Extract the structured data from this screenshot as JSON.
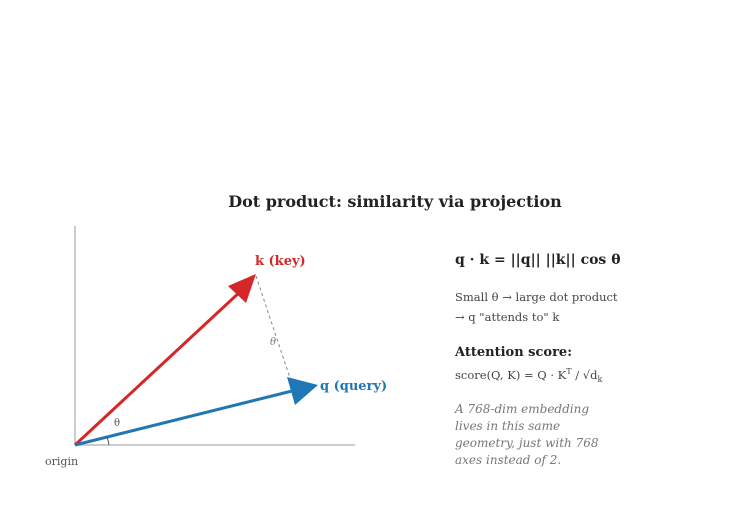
{
  "title": "Dot product: similarity via projection",
  "colors": {
    "key": "#d62728",
    "query": "#1f77b4",
    "axis": "#bbbbbb",
    "projection": "#888888"
  },
  "labels": {
    "key": "k (key)",
    "query": "q (query)",
    "origin": "origin",
    "theta": "θ"
  },
  "equation": "q · k = ||q|| ||k|| cos θ",
  "notes": {
    "line1": "Small θ → large dot product",
    "line2": "→ q \"attends to\" k"
  },
  "attention": {
    "title": "Attention score:",
    "prefix": "score(Q, K) = Q · K",
    "sup": "T",
    "middle": " / √d",
    "sub": "k"
  },
  "footnote": "A 768-dim embedding lives in this same geometry, just with 768 axes instead of 2."
}
